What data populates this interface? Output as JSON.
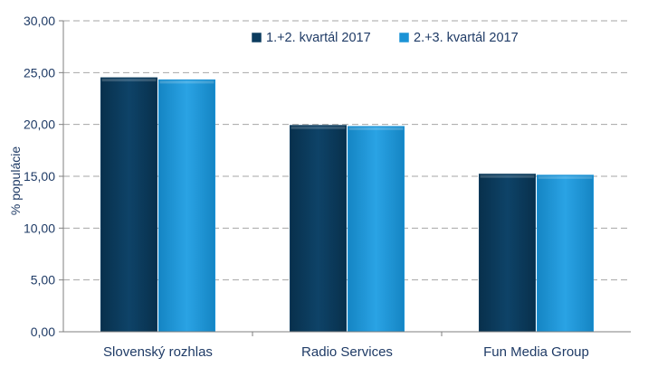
{
  "chart_data": {
    "type": "bar",
    "title": "",
    "xlabel": "",
    "ylabel": "% populácie",
    "categories": [
      "Slovenský rozhlas",
      "Radio Services",
      "Fun Media Group"
    ],
    "series": [
      {
        "name": "1.+2. kvartál 2017",
        "color": "#0c3c5e",
        "values": [
          24.5,
          19.9,
          15.2
        ]
      },
      {
        "name": "2.+3. kvartál 2017",
        "color": "#1b93d6",
        "values": [
          24.3,
          19.8,
          15.1
        ]
      }
    ],
    "ylim": [
      0,
      30
    ],
    "ytick_labels": [
      "0,00",
      "5,00",
      "10,00",
      "15,00",
      "20,00",
      "25,00",
      "30,00"
    ],
    "grid": true,
    "legend_position": "top-right"
  }
}
